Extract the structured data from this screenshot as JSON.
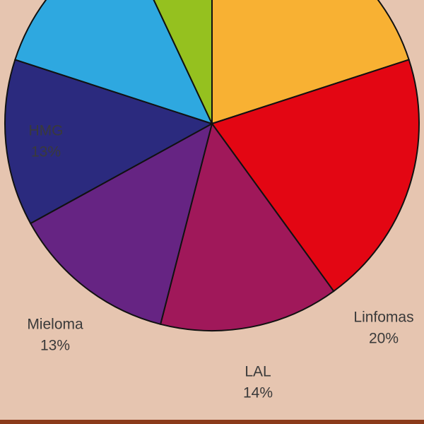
{
  "chart_data": {
    "type": "pie",
    "categories": [
      null,
      "Linfomas",
      "LAL",
      "Mieloma",
      "HMG",
      null,
      null
    ],
    "values": [
      20,
      20,
      14,
      13,
      13,
      13,
      7
    ],
    "value_labels": [
      null,
      "20%",
      "14%",
      "13%",
      "13%",
      null,
      null
    ],
    "colors": [
      "#f8b133",
      "#e30613",
      "#a0185a",
      "#662483",
      "#2b2a7e",
      "#2ea8e0",
      "#95c11f"
    ]
  }
}
